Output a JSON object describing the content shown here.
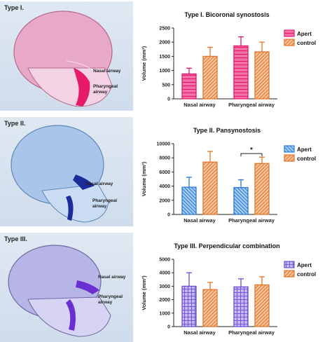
{
  "rows": [
    {
      "panel_label": "Type I.",
      "image_labels": {
        "nasal": "Nasal airway",
        "pharyngeal_1": "Pharyngeal",
        "pharyngeal_2": "airway"
      },
      "palette": {
        "skull": "#e8a9c8",
        "skull_dark": "#b7678f",
        "airway": "#e6196b"
      }
    },
    {
      "panel_label": "Type II.",
      "image_labels": {
        "nasal": "Nasal airway",
        "pharyngeal_1": "Pharyngeal",
        "pharyngeal_2": "airway"
      },
      "palette": {
        "skull": "#a9c6ea",
        "skull_dark": "#5f86b8",
        "airway": "#1c2b9c"
      }
    },
    {
      "panel_label": "Type III.",
      "image_labels": {
        "nasal": "Nasal airway",
        "pharyngeal_1": "Pharyngeal",
        "pharyngeal_2": "airway"
      },
      "palette": {
        "skull": "#b7b4e6",
        "skull_dark": "#6f6aa8",
        "airway": "#6b2fd0"
      }
    }
  ],
  "chart_data": [
    {
      "type": "bar",
      "title": "Type I. Bicoronal synostosis",
      "ylabel": "Volume (mm³)",
      "categories": [
        "Nasal airway",
        "Pharyngeal airway"
      ],
      "ylim": [
        0,
        2500
      ],
      "yticks": [
        "0",
        "500",
        "1000",
        "1500",
        "2000",
        "2500"
      ],
      "ytick_values": [
        0,
        500,
        1000,
        1500,
        2000,
        2500
      ],
      "legend_position": "top-right",
      "series": [
        {
          "name": "Apert",
          "values": [
            880,
            1870
          ],
          "errors": [
            200,
            320
          ],
          "color": "#e6196b",
          "fill": "#f472a8",
          "pattern": "horizontal"
        },
        {
          "name": "control",
          "values": [
            1500,
            1660
          ],
          "errors": [
            320,
            340
          ],
          "color": "#e8742a",
          "fill": "#f7c59c",
          "pattern": "diagonal"
        }
      ],
      "annotation": null
    },
    {
      "type": "bar",
      "title": "Type II. Pansynostosis",
      "ylabel": "Volume (mm³)",
      "categories": [
        "Nasal airway",
        "Pharyngeal airway"
      ],
      "ylim": [
        0,
        10000
      ],
      "yticks": [
        "0",
        "2000",
        "4000",
        "6000",
        "8000",
        "10000"
      ],
      "ytick_values": [
        0,
        2000,
        4000,
        6000,
        8000,
        10000
      ],
      "legend_position": "top-right",
      "series": [
        {
          "name": "Apert",
          "values": [
            3850,
            3800
          ],
          "errors": [
            1400,
            1100
          ],
          "color": "#2a79d6",
          "fill": "#a7ccf4",
          "pattern": "diagonal-back"
        },
        {
          "name": "control",
          "values": [
            7400,
            7200
          ],
          "errors": [
            1500,
            900
          ],
          "color": "#e8742a",
          "fill": "#f7c59c",
          "pattern": "diagonal"
        }
      ],
      "annotation": {
        "text": "*",
        "category_index": 1,
        "y": 8600
      }
    },
    {
      "type": "bar",
      "title": "Type III. Perpendicular combination",
      "ylabel": "Volume (mm³)",
      "categories": [
        "Nasal airway",
        "Pharyngeal airway"
      ],
      "ylim": [
        0,
        5000
      ],
      "yticks": [
        "0",
        "1000",
        "2000",
        "3000",
        "4000",
        "5000"
      ],
      "ytick_values": [
        0,
        1000,
        2000,
        3000,
        4000,
        5000
      ],
      "legend_position": "top-right",
      "series": [
        {
          "name": "Apert",
          "values": [
            3000,
            2950
          ],
          "errors": [
            1000,
            600
          ],
          "color": "#6b4fd8",
          "fill": "#c4b8f6",
          "pattern": "grid"
        },
        {
          "name": "control",
          "values": [
            2750,
            3100
          ],
          "errors": [
            530,
            600
          ],
          "color": "#e8742a",
          "fill": "#f7c59c",
          "pattern": "diagonal"
        }
      ],
      "annotation": null
    }
  ]
}
